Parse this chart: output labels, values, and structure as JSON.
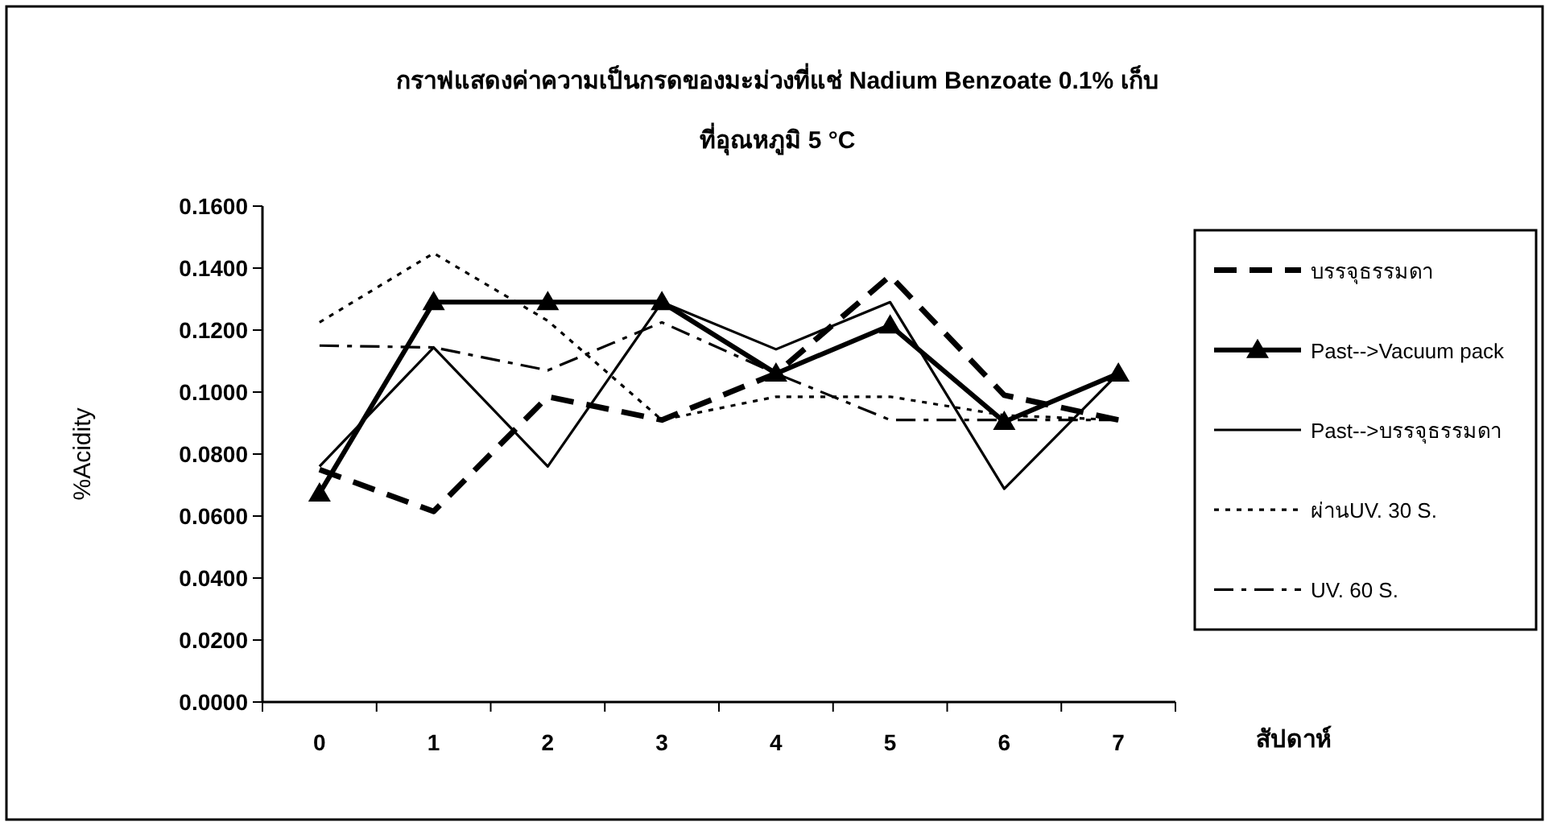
{
  "chart_data": {
    "type": "line",
    "title": "กราฟแสดงค่าความเป็นกรดของมะม่วงที่แช่ Nadium Benzoate 0.1% เก็บ",
    "subtitle": "ที่อุณหภูมิ 5 °C",
    "xlabel": "สัปดาห์",
    "ylabel": "%Acidity",
    "categories": [
      "0",
      "1",
      "2",
      "3",
      "4",
      "5",
      "6",
      "7"
    ],
    "ylim": [
      0,
      0.16
    ],
    "yticks": [
      {
        "value": 0,
        "label": "0.0000"
      },
      {
        "value": 0.02,
        "label": "0.0200"
      },
      {
        "value": 0.04,
        "label": "0.0400"
      },
      {
        "value": 0.06,
        "label": "0.0600"
      },
      {
        "value": 0.08,
        "label": "0.0800"
      },
      {
        "value": 0.1,
        "label": "0.1000"
      },
      {
        "value": 0.12,
        "label": "0.1200"
      },
      {
        "value": 0.14,
        "label": "0.1400"
      },
      {
        "value": 0.16,
        "label": "0.1600"
      }
    ],
    "grid": false,
    "legend": "right",
    "series": [
      {
        "name": "บรรจุธรรมดา",
        "color": "#000000",
        "line_style": "dashed",
        "marker": "none",
        "values": [
          0.075,
          0.0615,
          0.0985,
          0.091,
          0.106,
          0.1375,
          0.099,
          0.091
        ]
      },
      {
        "name": "Past-->Vacuum pack",
        "color": "#000000",
        "line_style": "solid",
        "marker": "triangle",
        "values": [
          0.0673,
          0.129,
          0.129,
          0.129,
          0.106,
          0.1215,
          0.0904,
          0.106
        ]
      },
      {
        "name": "Past-->บรรจุธรรมดา",
        "color": "#000000",
        "line_style": "solid",
        "marker": "none",
        "values": [
          0.076,
          0.1144,
          0.076,
          0.129,
          0.1138,
          0.129,
          0.0688,
          0.106
        ]
      },
      {
        "name": "ผ่านUV. 30 S.",
        "color": "#000000",
        "line_style": "dotted",
        "marker": "none",
        "values": [
          0.1225,
          0.1448,
          0.123,
          0.091,
          0.0985,
          0.0985,
          0.0925,
          0.091
        ]
      },
      {
        "name": "UV. 60 S.",
        "color": "#000000",
        "line_style": "dashdot",
        "marker": "none",
        "values": [
          0.115,
          0.1144,
          0.107,
          0.1225,
          0.106,
          0.091,
          0.091,
          0.091
        ]
      }
    ]
  }
}
